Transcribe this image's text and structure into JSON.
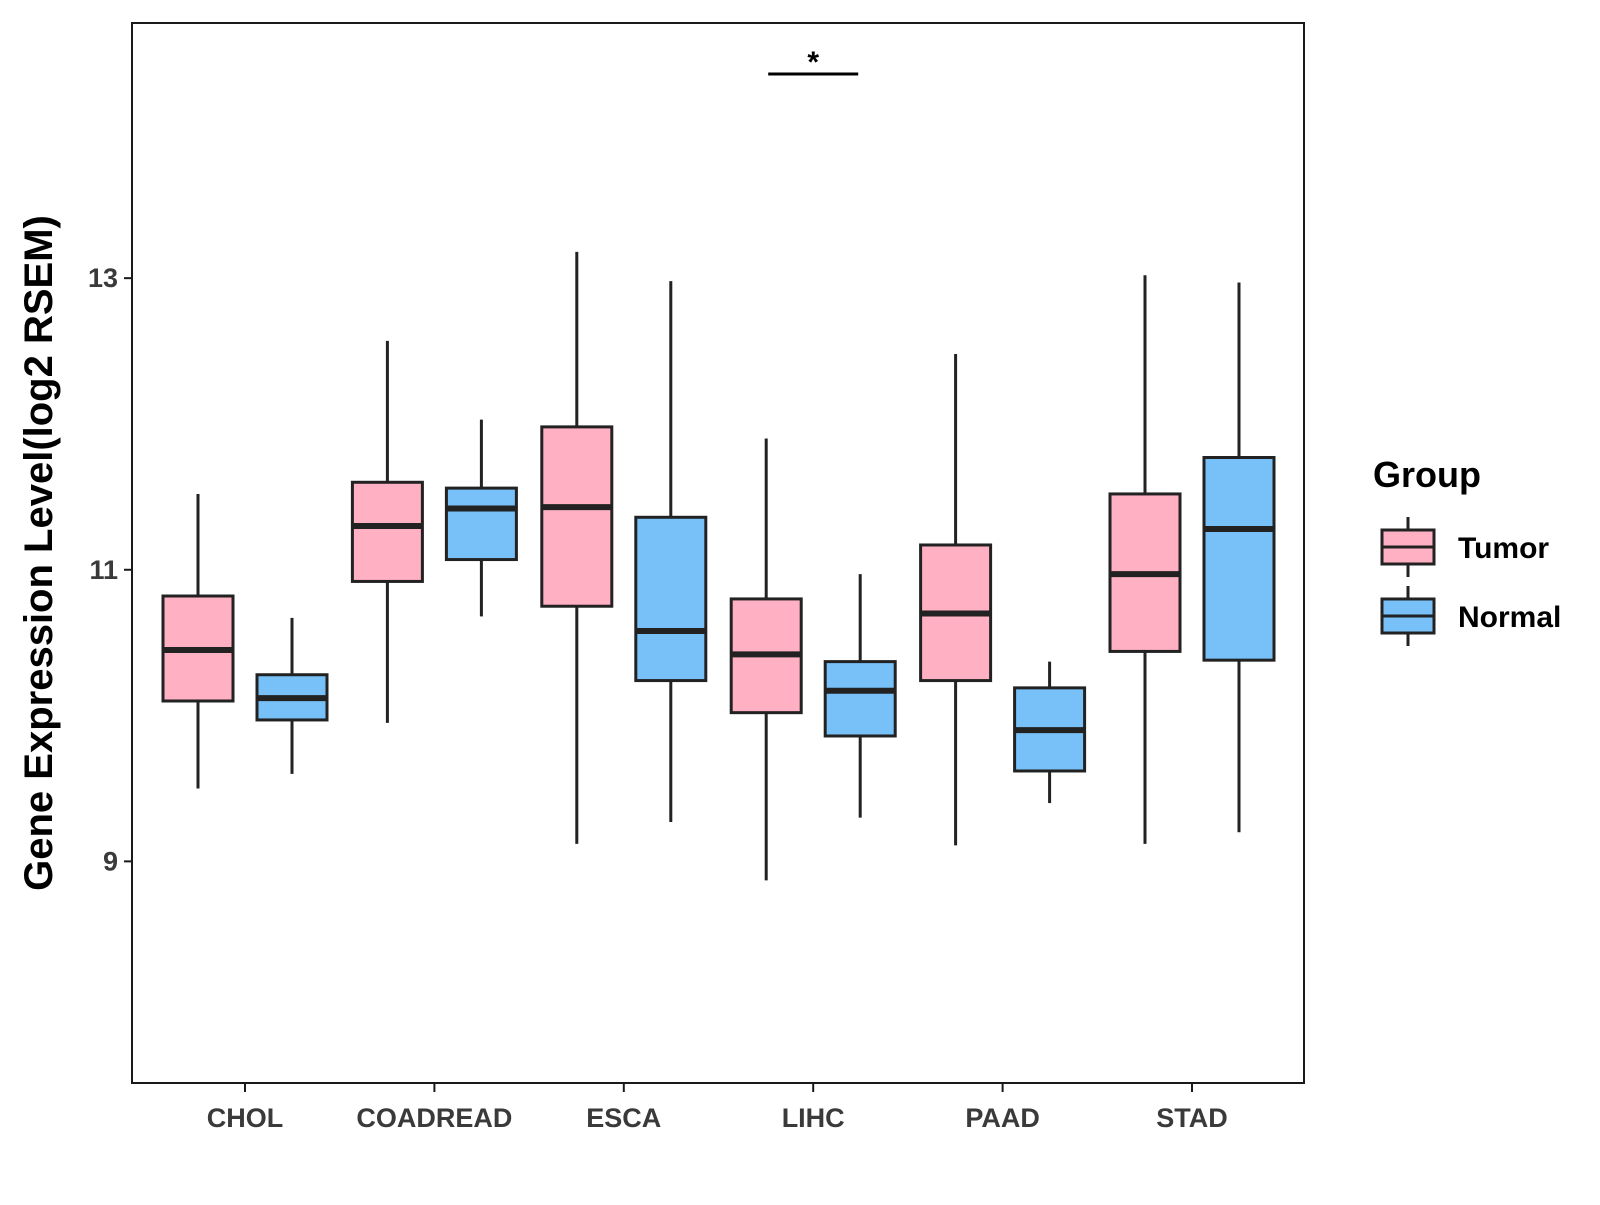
{
  "chart_data": {
    "type": "boxplot",
    "title": "",
    "xlabel": "",
    "ylabel": "Gene Expression Level(log2 RSEM)",
    "ylim": [
      7.48,
      14.75
    ],
    "yticks": [
      9,
      11,
      13
    ],
    "grid": false,
    "legend": {
      "title": "Group",
      "position": "right",
      "entries": [
        {
          "name": "Tumor",
          "color": "#FFB0C2"
        },
        {
          "name": "Normal",
          "color": "#78C1F8"
        }
      ]
    },
    "categories": [
      "CHOL",
      "COADREAD",
      "ESCA",
      "LIHC",
      "PAAD",
      "STAD"
    ],
    "series": [
      {
        "name": "Tumor",
        "color": "#FFB0C2",
        "boxes": [
          {
            "category": "CHOL",
            "whisker_low": 9.5,
            "q1": 10.1,
            "median": 10.45,
            "q3": 10.82,
            "whisker_high": 11.52
          },
          {
            "category": "COADREAD",
            "whisker_low": 9.95,
            "q1": 10.92,
            "median": 11.3,
            "q3": 11.6,
            "whisker_high": 12.57
          },
          {
            "category": "ESCA",
            "whisker_low": 9.12,
            "q1": 10.75,
            "median": 11.43,
            "q3": 11.98,
            "whisker_high": 13.18
          },
          {
            "category": "LIHC",
            "whisker_low": 8.87,
            "q1": 10.02,
            "median": 10.42,
            "q3": 10.8,
            "whisker_high": 11.9
          },
          {
            "category": "PAAD",
            "whisker_low": 9.11,
            "q1": 10.24,
            "median": 10.7,
            "q3": 11.17,
            "whisker_high": 12.48
          },
          {
            "category": "STAD",
            "whisker_low": 9.12,
            "q1": 10.44,
            "median": 10.97,
            "q3": 11.52,
            "whisker_high": 13.02
          }
        ]
      },
      {
        "name": "Normal",
        "color": "#78C1F8",
        "boxes": [
          {
            "category": "CHOL",
            "whisker_low": 9.6,
            "q1": 9.97,
            "median": 10.12,
            "q3": 10.28,
            "whisker_high": 10.67
          },
          {
            "category": "COADREAD",
            "whisker_low": 10.68,
            "q1": 11.07,
            "median": 11.42,
            "q3": 11.56,
            "whisker_high": 12.03
          },
          {
            "category": "ESCA",
            "whisker_low": 9.27,
            "q1": 10.24,
            "median": 10.58,
            "q3": 11.36,
            "whisker_high": 12.98
          },
          {
            "category": "LIHC",
            "whisker_low": 9.3,
            "q1": 9.86,
            "median": 10.17,
            "q3": 10.37,
            "whisker_high": 10.97
          },
          {
            "category": "PAAD",
            "whisker_low": 9.4,
            "q1": 9.62,
            "median": 9.9,
            "q3": 10.19,
            "whisker_high": 10.37
          },
          {
            "category": "STAD",
            "whisker_low": 9.2,
            "q1": 10.38,
            "median": 11.28,
            "q3": 11.77,
            "whisker_high": 12.97
          }
        ]
      }
    ],
    "annotations": [
      {
        "category": "LIHC",
        "label": "*",
        "y": 14.4
      }
    ]
  }
}
